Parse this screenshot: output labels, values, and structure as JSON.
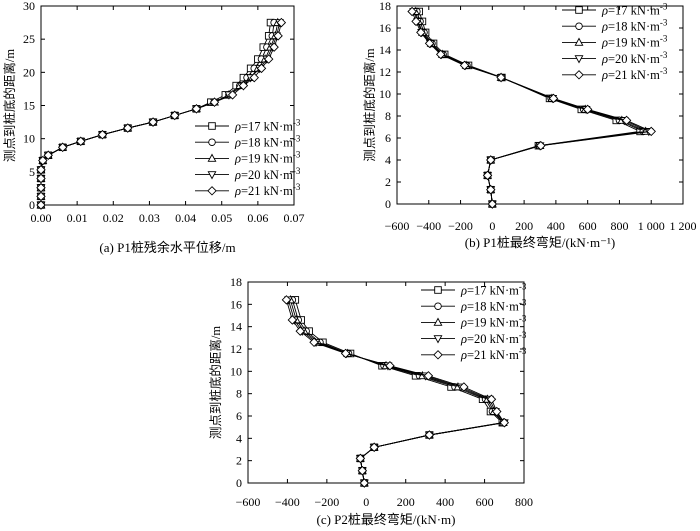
{
  "figure": {
    "series_names": [
      "ρ=17 kN·m⁻³",
      "ρ=18 kN·m⁻³",
      "ρ=19 kN·m⁻³",
      "ρ=20 kN·m⁻³",
      "ρ=21 kN·m⁻³"
    ],
    "markers": [
      "square",
      "circle",
      "triangle-up",
      "triangle-down",
      "diamond"
    ]
  },
  "chart_data": [
    {
      "type": "line",
      "caption": "(a) P1桩残余水平位移/m",
      "ylabel": "测点到桩底的距离/m",
      "xlabel": "",
      "xlim": [
        0,
        0.07
      ],
      "ylim": [
        0,
        30
      ],
      "xticks": [
        "0.00",
        "0.01",
        "0.02",
        "0.03",
        "0.04",
        "0.05",
        "0.06",
        "0.07"
      ],
      "yticks": [
        "0",
        "5",
        "10",
        "15",
        "20",
        "25",
        "30"
      ],
      "legend": "lower-right",
      "series": [
        {
          "name": "ρ=17 kN·m⁻³",
          "x": [
            0.0,
            0.0,
            0.0,
            0.0,
            0.0,
            0.0005,
            0.002,
            0.006,
            0.011,
            0.017,
            0.024,
            0.031,
            0.037,
            0.043,
            0.047,
            0.051,
            0.054,
            0.056,
            0.058,
            0.06,
            0.0615,
            0.063,
            0.0635
          ],
          "y": [
            0,
            1.3,
            2.6,
            4,
            5.3,
            6.7,
            7.5,
            8.7,
            9.6,
            10.6,
            11.6,
            12.5,
            13.5,
            14.5,
            15.5,
            16.6,
            18.0,
            19.2,
            20.6,
            22.0,
            23.8,
            25.5,
            27.5
          ]
        },
        {
          "name": "ρ=18 kN·m⁻³",
          "x": [
            0.0,
            0.0,
            0.0,
            0.0,
            0.0,
            0.0005,
            0.002,
            0.006,
            0.011,
            0.017,
            0.024,
            0.031,
            0.037,
            0.043,
            0.048,
            0.052,
            0.055,
            0.057,
            0.059,
            0.061,
            0.0625,
            0.064,
            0.0645
          ],
          "y": [
            0,
            1.3,
            2.6,
            4,
            5.3,
            6.7,
            7.5,
            8.7,
            9.6,
            10.6,
            11.6,
            12.5,
            13.5,
            14.5,
            15.5,
            16.6,
            18.0,
            19.2,
            20.6,
            22.0,
            23.8,
            25.5,
            27.5
          ]
        },
        {
          "name": "ρ=19 kN·m⁻³",
          "x": [
            0.0,
            0.0,
            0.0,
            0.0,
            0.0,
            0.0005,
            0.002,
            0.006,
            0.011,
            0.017,
            0.024,
            0.031,
            0.037,
            0.043,
            0.048,
            0.052,
            0.055,
            0.058,
            0.06,
            0.062,
            0.0635,
            0.0648,
            0.0655
          ],
          "y": [
            0,
            1.3,
            2.6,
            4,
            5.3,
            6.7,
            7.5,
            8.7,
            9.6,
            10.6,
            11.6,
            12.5,
            13.5,
            14.5,
            15.5,
            16.6,
            18.0,
            19.2,
            20.6,
            22.0,
            23.8,
            25.5,
            27.5
          ]
        },
        {
          "name": "ρ=20 kN·m⁻³",
          "x": [
            0.0,
            0.0,
            0.0,
            0.0,
            0.0,
            0.0005,
            0.002,
            0.006,
            0.011,
            0.017,
            0.024,
            0.031,
            0.037,
            0.043,
            0.048,
            0.052,
            0.056,
            0.058,
            0.0605,
            0.0625,
            0.064,
            0.0652,
            0.066
          ],
          "y": [
            0,
            1.3,
            2.6,
            4,
            5.3,
            6.7,
            7.5,
            8.7,
            9.6,
            10.6,
            11.6,
            12.5,
            13.5,
            14.5,
            15.5,
            16.6,
            18.0,
            19.2,
            20.6,
            22.0,
            23.8,
            25.5,
            27.5
          ]
        },
        {
          "name": "ρ=21 kN·m⁻³",
          "x": [
            0.0,
            0.0,
            0.0,
            0.0,
            0.0,
            0.0005,
            0.002,
            0.006,
            0.011,
            0.017,
            0.024,
            0.031,
            0.037,
            0.043,
            0.048,
            0.053,
            0.056,
            0.059,
            0.061,
            0.063,
            0.0645,
            0.0656,
            0.0665
          ],
          "y": [
            0,
            1.3,
            2.6,
            4,
            5.3,
            6.7,
            7.5,
            8.7,
            9.6,
            10.6,
            11.6,
            12.5,
            13.5,
            14.5,
            15.5,
            16.6,
            18.0,
            19.2,
            20.6,
            22.0,
            23.8,
            25.5,
            27.5
          ]
        }
      ]
    },
    {
      "type": "line",
      "caption": "(b) P1桩最终弯矩/(kN·m⁻¹)",
      "ylabel": "测点到桩底的距离/m",
      "xlabel": "",
      "xlim": [
        -600,
        1200
      ],
      "ylim": [
        0,
        18
      ],
      "xticks": [
        "−600",
        "−400",
        "−200",
        "0",
        "200",
        "400",
        "600",
        "800",
        "1 000",
        "1 200"
      ],
      "yticks": [
        "0",
        "2",
        "4",
        "6",
        "8",
        "10",
        "12",
        "14",
        "16",
        "18"
      ],
      "legend": "upper-right",
      "series": [
        {
          "name": "ρ=17 kN·m⁻³",
          "x": [
            0,
            -10,
            -30,
            -10,
            290,
            930,
            780,
            560,
            360,
            60,
            -150,
            -300,
            -370,
            -420,
            -440,
            -460
          ],
          "y": [
            0,
            1.3,
            2.6,
            4,
            5.3,
            6.6,
            7.6,
            8.6,
            9.6,
            11.5,
            12.6,
            13.6,
            14.6,
            15.6,
            16.6,
            17.5
          ]
        },
        {
          "name": "ρ=18 kN·m⁻³",
          "x": [
            0,
            -10,
            -30,
            -10,
            295,
            950,
            800,
            575,
            370,
            55,
            -160,
            -310,
            -380,
            -430,
            -455,
            -475
          ],
          "y": [
            0,
            1.3,
            2.6,
            4,
            5.3,
            6.6,
            7.6,
            8.6,
            9.6,
            11.5,
            12.6,
            13.6,
            14.6,
            15.6,
            16.6,
            17.5
          ]
        },
        {
          "name": "ρ=19 kN·m⁻³",
          "x": [
            0,
            -10,
            -30,
            -10,
            300,
            965,
            815,
            585,
            375,
            55,
            -165,
            -315,
            -385,
            -440,
            -465,
            -485
          ],
          "y": [
            0,
            1.3,
            2.6,
            4,
            5.3,
            6.6,
            7.6,
            8.6,
            9.6,
            11.5,
            12.6,
            13.6,
            14.6,
            15.6,
            16.6,
            17.5
          ]
        },
        {
          "name": "ρ=20 kN·m⁻³",
          "x": [
            0,
            -10,
            -30,
            -10,
            300,
            985,
            830,
            590,
            380,
            55,
            -170,
            -320,
            -390,
            -445,
            -470,
            -495
          ],
          "y": [
            0,
            1.3,
            2.6,
            4,
            5.3,
            6.6,
            7.6,
            8.6,
            9.6,
            11.5,
            12.6,
            13.6,
            14.6,
            15.6,
            16.6,
            17.5
          ]
        },
        {
          "name": "ρ=21 kN·m⁻³",
          "x": [
            0,
            -10,
            -30,
            -10,
            305,
            1000,
            845,
            600,
            385,
            55,
            -175,
            -325,
            -395,
            -450,
            -480,
            -505
          ],
          "y": [
            0,
            1.3,
            2.6,
            4,
            5.3,
            6.6,
            7.6,
            8.6,
            9.6,
            11.5,
            12.6,
            13.6,
            14.6,
            15.6,
            16.6,
            17.5
          ]
        }
      ]
    },
    {
      "type": "line",
      "caption": "(c) P2桩最终弯矩/(kN·m)",
      "ylabel": "测点到桩底的距离/m",
      "xlabel": "",
      "xlim": [
        -600,
        800
      ],
      "ylim": [
        0,
        18
      ],
      "xticks": [
        "−600",
        "−400",
        "−200",
        "0",
        "200",
        "400",
        "600",
        "800"
      ],
      "yticks": [
        "0",
        "2",
        "4",
        "6",
        "8",
        "10",
        "12",
        "14",
        "16",
        "18"
      ],
      "legend": "upper-right",
      "series": [
        {
          "name": "ρ=17 kN·m⁻³",
          "x": [
            -10,
            -20,
            -30,
            40,
            320,
            690,
            630,
            590,
            430,
            250,
            80,
            -80,
            -220,
            -290,
            -330,
            -360
          ],
          "y": [
            0,
            1.1,
            2.2,
            3.2,
            4.3,
            5.4,
            6.4,
            7.5,
            8.6,
            9.6,
            10.5,
            11.6,
            12.6,
            13.6,
            14.6,
            16.4
          ]
        },
        {
          "name": "ρ=18 kN·m⁻³",
          "x": [
            -10,
            -20,
            -30,
            40,
            320,
            695,
            640,
            605,
            450,
            270,
            90,
            -90,
            -235,
            -305,
            -345,
            -375
          ],
          "y": [
            0,
            1.1,
            2.2,
            3.2,
            4.3,
            5.4,
            6.4,
            7.5,
            8.6,
            9.6,
            10.5,
            11.6,
            12.6,
            13.6,
            14.6,
            16.4
          ]
        },
        {
          "name": "ρ=19 kN·m⁻³",
          "x": [
            -10,
            -20,
            -30,
            40,
            320,
            695,
            648,
            615,
            465,
            285,
            100,
            -95,
            -245,
            -315,
            -355,
            -385
          ],
          "y": [
            0,
            1.1,
            2.2,
            3.2,
            4.3,
            5.4,
            6.4,
            7.5,
            8.6,
            9.6,
            10.5,
            11.6,
            12.6,
            13.6,
            14.6,
            16.4
          ]
        },
        {
          "name": "ρ=20 kN·m⁻³",
          "x": [
            -10,
            -20,
            -30,
            40,
            320,
            700,
            655,
            625,
            480,
            300,
            110,
            -100,
            -255,
            -325,
            -365,
            -395
          ],
          "y": [
            0,
            1.1,
            2.2,
            3.2,
            4.3,
            5.4,
            6.4,
            7.5,
            8.6,
            9.6,
            10.5,
            11.6,
            12.6,
            13.6,
            14.6,
            16.4
          ]
        },
        {
          "name": "ρ=21 kN·m⁻³",
          "x": [
            -10,
            -20,
            -30,
            40,
            320,
            700,
            662,
            635,
            495,
            315,
            120,
            -105,
            -265,
            -335,
            -375,
            -405
          ],
          "y": [
            0,
            1.1,
            2.2,
            3.2,
            4.3,
            5.4,
            6.4,
            7.5,
            8.6,
            9.6,
            10.5,
            11.6,
            12.6,
            13.6,
            14.6,
            16.4
          ]
        }
      ]
    }
  ]
}
